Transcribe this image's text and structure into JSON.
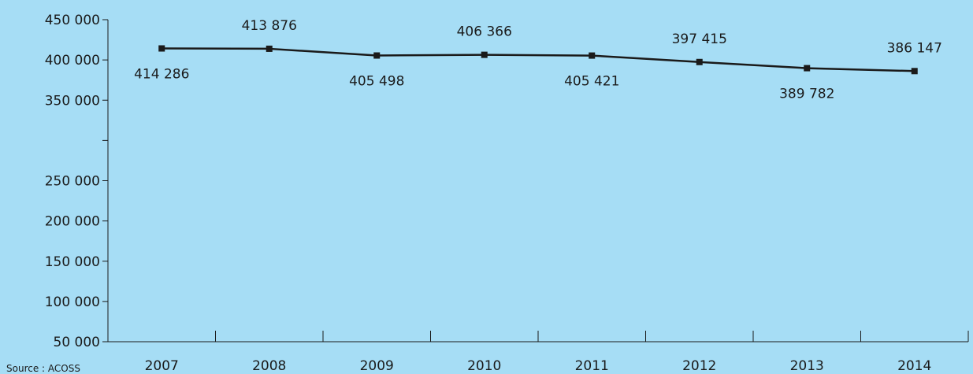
{
  "chart_data": {
    "type": "line",
    "title": "",
    "xlabel": "",
    "ylabel": "",
    "categories": [
      "2007",
      "2008",
      "2009",
      "2010",
      "2011",
      "2012",
      "2013",
      "2014"
    ],
    "series": [
      {
        "values": [
          414286,
          413876,
          405498,
          406366,
          405421,
          397415,
          389782,
          386147
        ],
        "labels": [
          "414 286",
          "413 876",
          "405 498",
          "406 366",
          "405 421",
          "397 415",
          "389 782",
          "386 147"
        ],
        "color": "#1a1a1a"
      }
    ],
    "ylim": [
      50000,
      450000
    ],
    "yticks": [
      50000,
      100000,
      150000,
      200000,
      250000,
      300000,
      350000,
      400000,
      450000
    ],
    "ytick_labels": [
      "50 000",
      "100 000",
      "150 000",
      "200 000",
      "250 000",
      "",
      "350 000",
      "400 000",
      "450 000"
    ],
    "grid": false,
    "legend": "none",
    "background_color": "#a6ddf5",
    "source": "Source : ACOSS"
  }
}
